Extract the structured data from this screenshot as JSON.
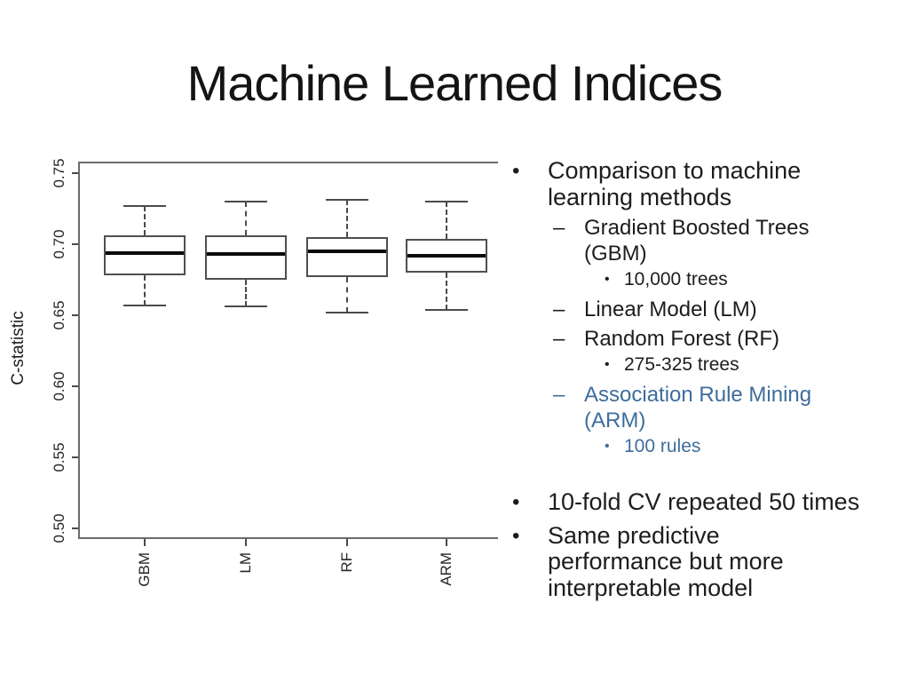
{
  "slide": {
    "title": "Machine Learned Indices"
  },
  "colors": {
    "accent_blue": "#3E6D9C",
    "text": "#1D1D1D",
    "axis": "#4A4A4A",
    "frame": "#6B6B6B"
  },
  "chart_data": {
    "type": "boxplot",
    "title": "",
    "xlabel": "",
    "ylabel": "C-statistic",
    "categories": [
      "GBM",
      "LM",
      "RF",
      "ARM"
    ],
    "yticks": [
      "0.75",
      "0.70",
      "0.65",
      "0.60",
      "0.55",
      "0.50"
    ],
    "ylim": [
      0.487,
      0.758
    ],
    "grid": false,
    "legend": "none",
    "boxes": [
      {
        "category": "GBM",
        "whisker_low": 0.657,
        "q1": 0.678,
        "median": 0.694,
        "q3": 0.706,
        "whisker_high": 0.727
      },
      {
        "category": "LM",
        "whisker_low": 0.656,
        "q1": 0.675,
        "median": 0.693,
        "q3": 0.706,
        "whisker_high": 0.73
      },
      {
        "category": "RF",
        "whisker_low": 0.652,
        "q1": 0.677,
        "median": 0.695,
        "q3": 0.705,
        "whisker_high": 0.731
      },
      {
        "category": "ARM",
        "whisker_low": 0.654,
        "q1": 0.68,
        "median": 0.692,
        "q3": 0.704,
        "whisker_high": 0.73
      }
    ]
  },
  "bullets": {
    "items": [
      {
        "level": 1,
        "marker": "•",
        "text": "Comparison to machine\nlearning methods"
      },
      {
        "level": 2,
        "marker": "–",
        "text": "Gradient Boosted Trees\n(GBM)"
      },
      {
        "level": 3,
        "marker": "•",
        "text": "10,000 trees"
      },
      {
        "level": 2,
        "marker": "–",
        "text": "Linear Model (LM)"
      },
      {
        "level": 2,
        "marker": "–",
        "text": "Random Forest (RF)"
      },
      {
        "level": 3,
        "marker": "•",
        "text": "275-325 trees"
      },
      {
        "level": 2,
        "marker": "–",
        "text": "Association Rule Mining\n(ARM)",
        "accent": true
      },
      {
        "level": 3,
        "marker": "•",
        "text": "100 rules",
        "accent": true
      },
      {
        "level": 1,
        "marker": "•",
        "text": "10-fold CV repeated 50 times"
      },
      {
        "level": 1,
        "marker": "•",
        "text": "Same predictive\nperformance but more\ninterpretable model"
      }
    ]
  }
}
